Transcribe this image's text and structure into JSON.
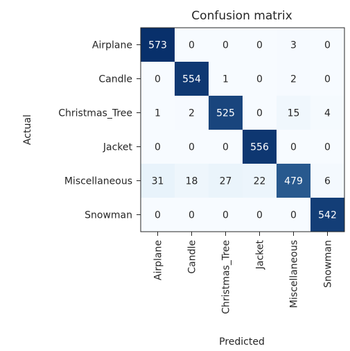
{
  "chart_data": {
    "type": "heatmap",
    "title": "Confusion matrix",
    "xlabel": "Predicted",
    "ylabel": "Actual",
    "x_categories": [
      "Airplane",
      "Candle",
      "Christmas_Tree",
      "Jacket",
      "Miscellaneous",
      "Snowman"
    ],
    "y_categories": [
      "Airplane",
      "Candle",
      "Christmas_Tree",
      "Jacket",
      "Miscellaneous",
      "Snowman"
    ],
    "values": [
      [
        573,
        0,
        0,
        0,
        3,
        0
      ],
      [
        0,
        554,
        1,
        0,
        2,
        0
      ],
      [
        1,
        2,
        525,
        0,
        15,
        4
      ],
      [
        0,
        0,
        0,
        556,
        0,
        0
      ],
      [
        31,
        18,
        27,
        22,
        479,
        6
      ],
      [
        0,
        0,
        0,
        0,
        0,
        542
      ]
    ],
    "colormap": {
      "low": "#f7fbff",
      "mid": "#6baed6",
      "high": "#08306b"
    },
    "text_colors": {
      "light": "#ffffff",
      "dark": "#262626"
    },
    "grid": false
  }
}
